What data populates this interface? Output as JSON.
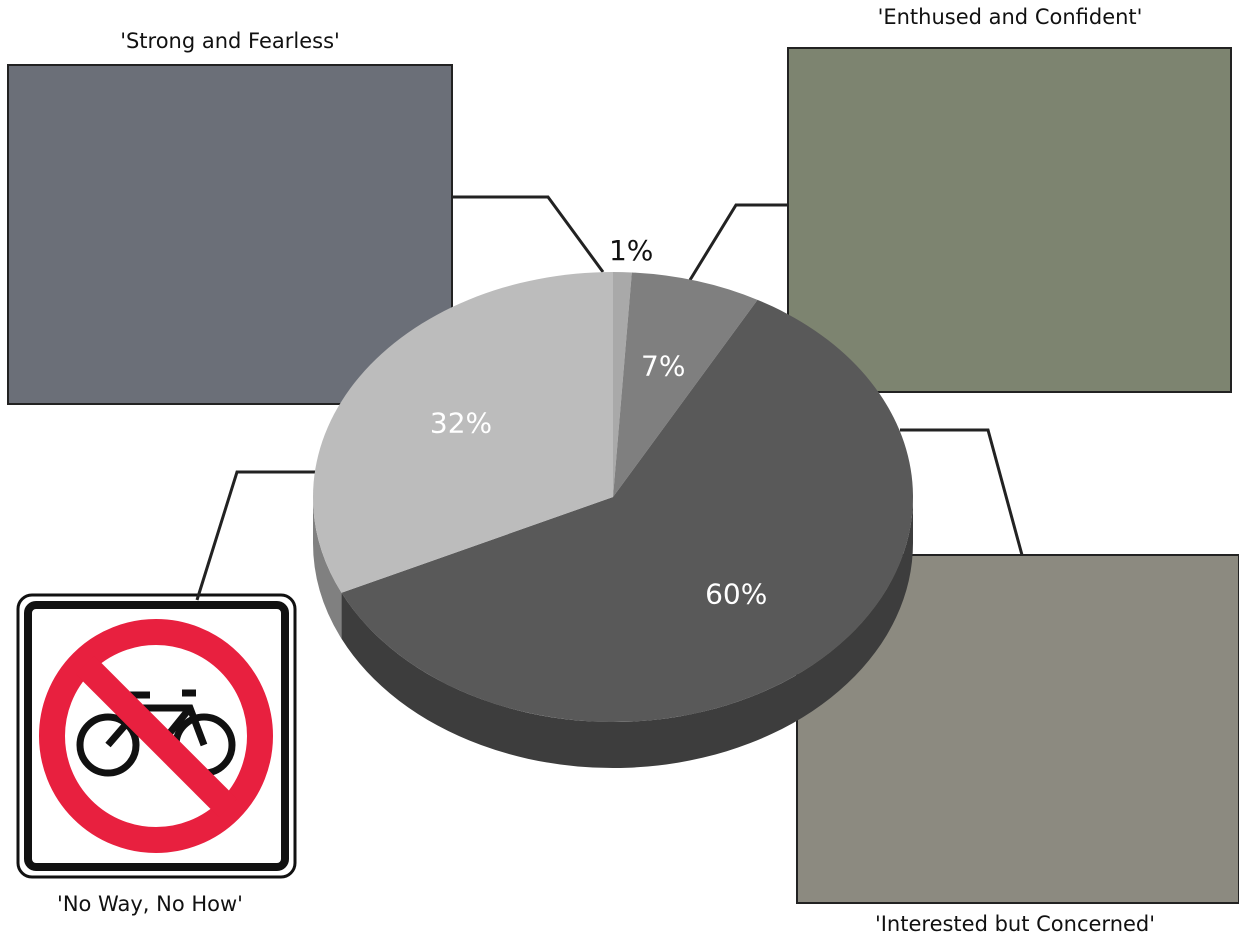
{
  "chart_data": {
    "type": "pie",
    "categories": [
      "'Strong and Fearless'",
      "'Enthused and Confident'",
      "'Interested but Concerned'",
      "'No Way, No How'"
    ],
    "values": [
      1,
      7,
      60,
      32
    ],
    "value_labels": [
      "1%",
      "7%",
      "60%",
      "32%"
    ],
    "colors": [
      "#a9a9a9",
      "#7f7f7f",
      "#595959",
      "#bcbcbc"
    ]
  }
}
